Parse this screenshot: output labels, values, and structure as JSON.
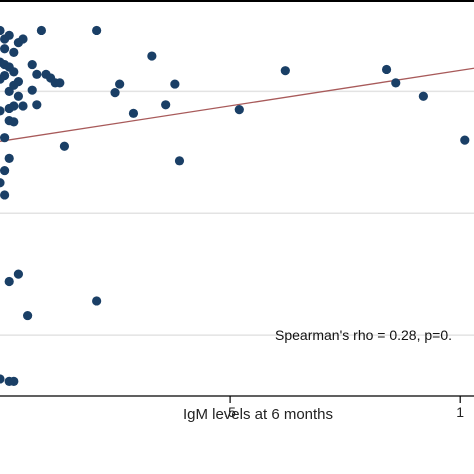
{
  "chart_data": {
    "type": "scatter",
    "title": "",
    "xlabel": "IgM levels at 6 months",
    "ylabel": "",
    "x_ticks": [
      0.5,
      1
    ],
    "x_tick_labels": [
      ".5",
      "1"
    ],
    "xlim": [
      0,
      1.03
    ],
    "ylim": [
      0,
      3.25
    ],
    "y_gridlines": [
      0.5,
      1.5,
      2.5
    ],
    "grid": true,
    "series": [
      {
        "points": [
          [
            0.0,
            3.0
          ],
          [
            0.01,
            2.93
          ],
          [
            0.02,
            2.96
          ],
          [
            0.04,
            2.9
          ],
          [
            0.01,
            2.85
          ],
          [
            0.03,
            2.82
          ],
          [
            0.0,
            2.74
          ],
          [
            0.01,
            2.72
          ],
          [
            0.02,
            2.7
          ],
          [
            0.03,
            2.66
          ],
          [
            0.01,
            2.63
          ],
          [
            0.0,
            2.6
          ],
          [
            0.04,
            2.58
          ],
          [
            0.08,
            2.64
          ],
          [
            0.1,
            2.64
          ],
          [
            0.11,
            2.61
          ],
          [
            0.09,
            3.0
          ],
          [
            0.21,
            3.0
          ],
          [
            0.05,
            2.93
          ],
          [
            0.07,
            2.72
          ],
          [
            0.03,
            2.55
          ],
          [
            0.02,
            2.5
          ],
          [
            0.04,
            2.46
          ],
          [
            0.07,
            2.51
          ],
          [
            0.12,
            2.57
          ],
          [
            0.13,
            2.57
          ],
          [
            0.33,
            2.79
          ],
          [
            0.26,
            2.56
          ],
          [
            0.38,
            2.56
          ],
          [
            0.62,
            2.67
          ],
          [
            0.84,
            2.68
          ],
          [
            0.86,
            2.57
          ],
          [
            0.25,
            2.49
          ],
          [
            0.03,
            2.38
          ],
          [
            0.05,
            2.38
          ],
          [
            0.08,
            2.39
          ],
          [
            0.02,
            2.36
          ],
          [
            0.0,
            2.34
          ],
          [
            0.36,
            2.39
          ],
          [
            0.52,
            2.35
          ],
          [
            0.92,
            2.46
          ],
          [
            0.29,
            2.32
          ],
          [
            0.02,
            2.26
          ],
          [
            0.03,
            2.25
          ],
          [
            0.01,
            2.12
          ],
          [
            0.14,
            2.05
          ],
          [
            0.39,
            1.93
          ],
          [
            1.01,
            2.1
          ],
          [
            0.02,
            1.95
          ],
          [
            0.01,
            1.85
          ],
          [
            0.0,
            1.75
          ],
          [
            0.01,
            1.65
          ],
          [
            0.02,
            0.94
          ],
          [
            0.04,
            1.0
          ],
          [
            0.21,
            0.78
          ],
          [
            0.06,
            0.66
          ],
          [
            0.0,
            0.14
          ],
          [
            0.02,
            0.12
          ],
          [
            0.03,
            0.12
          ]
        ]
      }
    ],
    "fit_line": {
      "x": [
        0,
        1.03
      ],
      "y": [
        2.09,
        2.69
      ]
    },
    "annotation": "Spearman's rho = 0.28, p=0.",
    "colors": {
      "points": "#1a3f66",
      "fit_line": "#a85a5a",
      "grid": "#e3e3e3",
      "axis": "#000000"
    }
  }
}
